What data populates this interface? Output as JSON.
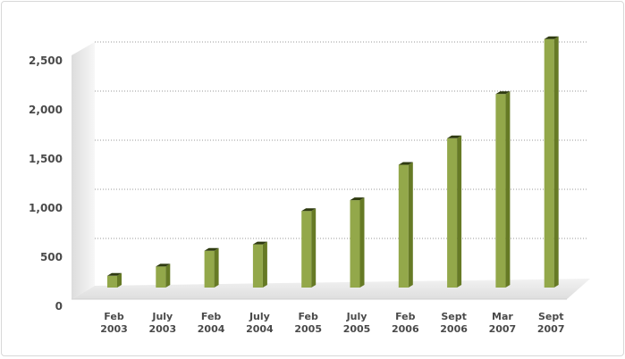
{
  "chart_data": {
    "type": "bar",
    "title": "",
    "xlabel": "",
    "ylabel": "",
    "categories": [
      [
        "Feb",
        "2003"
      ],
      [
        "July",
        "2003"
      ],
      [
        "Feb",
        "2004"
      ],
      [
        "July",
        "2004"
      ],
      [
        "Feb",
        "2005"
      ],
      [
        "July",
        "2005"
      ],
      [
        "Feb",
        "2006"
      ],
      [
        "Sept",
        "2006"
      ],
      [
        "Mar",
        "2007"
      ],
      [
        "Sept",
        "2007"
      ]
    ],
    "values": [
      120,
      215,
      375,
      440,
      780,
      890,
      1250,
      1520,
      1970,
      2530
    ],
    "ylim": [
      0,
      2500
    ],
    "yticks": [
      0,
      500,
      1000,
      1500,
      2000,
      2500
    ],
    "ytick_labels": [
      "0",
      "500",
      "1,000",
      "1,500",
      "2,000",
      "2,500"
    ],
    "grid": true,
    "legend": "none",
    "colors": {
      "bar_front": "#93a84a",
      "bar_side": "#667a25",
      "bar_top": "#2e3a10",
      "grid": "#9a9a9a",
      "floor": "#ebebeb",
      "wall": "#f0f0f0"
    }
  }
}
